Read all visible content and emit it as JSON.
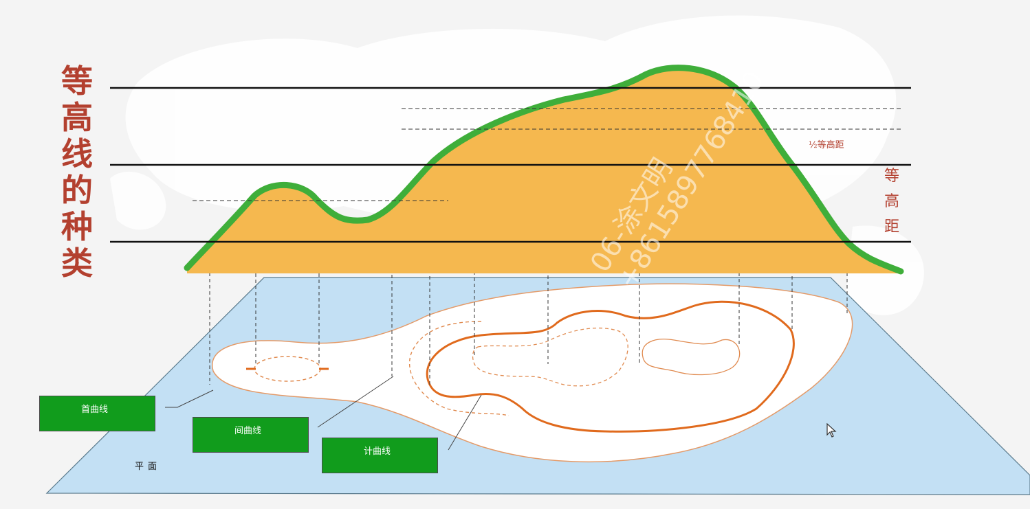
{
  "title_chars": [
    "等",
    "高",
    "线",
    "的",
    "种",
    "类"
  ],
  "interval_label_chars": [
    "等",
    "高",
    "距"
  ],
  "half_interval_label": "½等高距",
  "boxes": {
    "index_contour": "首曲线",
    "intermediate_contour": "间曲线",
    "supplementary_contour": "计曲线"
  },
  "plane_label": "平面",
  "watermark": {
    "line1": "06-涂文明",
    "line2": "+8615897768410"
  },
  "colors": {
    "title": "#b3402f",
    "mountain_fill": "#f5b84f",
    "mountain_outline": "#3fae3a",
    "plane": "#c3e0f4",
    "contour": "#e06a1d",
    "box_fill": "#119c1c"
  }
}
